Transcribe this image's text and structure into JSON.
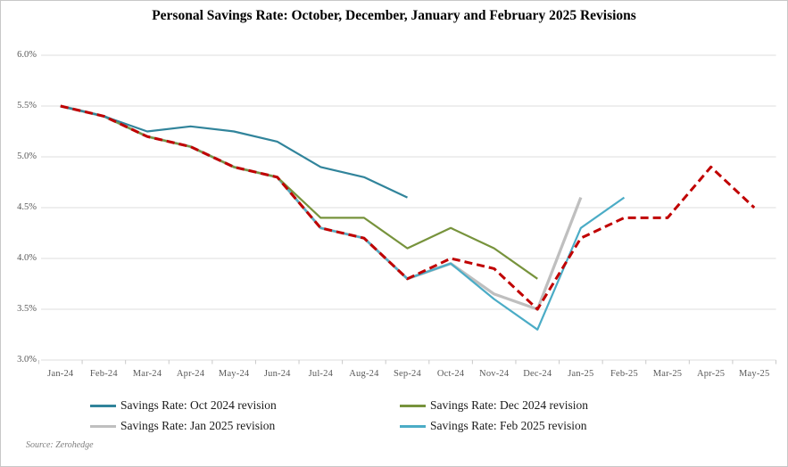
{
  "title": "Personal Savings Rate: October, December, January and February 2025 Revisions",
  "source": "Source: Zerohedge",
  "colors": {
    "background": "#ffffff",
    "frame_border": "#c8c8c8",
    "gridline": "#dcdcdc",
    "axis_tick": "#c9c9c9",
    "axis_text": "#595959",
    "legend_text": "#1a1a1a",
    "title_text": "#000000",
    "oct_revision": "#31849b",
    "dec_revision": "#77933c",
    "jan_revision": "#bfbfbf",
    "feb_revision": "#4bacc6",
    "red_dashed": "#c00000"
  },
  "legend": [
    {
      "label": "Savings Rate: Oct 2024 revision",
      "color": "#31849b"
    },
    {
      "label": "Savings Rate: Dec 2024 revision",
      "color": "#77933c"
    },
    {
      "label": "Savings Rate: Jan 2025 revision",
      "color": "#bfbfbf"
    },
    {
      "label": "Savings Rate: Feb 2025 revision",
      "color": "#4bacc6"
    }
  ],
  "chart_data": {
    "type": "line",
    "title": "Personal Savings Rate: October, December, January and February 2025 Revisions",
    "xlabel": "",
    "ylabel": "",
    "ylim": [
      3.0,
      6.0
    ],
    "grid": "horizontal",
    "legend_position": "bottom",
    "categories": [
      "Jan-24",
      "Feb-24",
      "Mar-24",
      "Apr-24",
      "May-24",
      "Jun-24",
      "Jul-24",
      "Aug-24",
      "Sep-24",
      "Oct-24",
      "Nov-24",
      "Dec-24",
      "Jan-25",
      "Feb-25",
      "Mar-25",
      "Apr-25",
      "May-25"
    ],
    "yticks": [
      {
        "label": "6.0%",
        "value": 6.0
      },
      {
        "label": "5.5%",
        "value": 5.5
      },
      {
        "label": "5.0%",
        "value": 5.0
      },
      {
        "label": "4.5%",
        "value": 4.5
      },
      {
        "label": "4.0%",
        "value": 4.0
      },
      {
        "label": "3.5%",
        "value": 3.5
      },
      {
        "label": "3.0%",
        "value": 3.0
      }
    ],
    "series": [
      {
        "name": "Savings Rate: Jan 2025 revision",
        "color": "#bfbfbf",
        "width": 3.25,
        "dashed": false,
        "values": [
          5.5,
          5.4,
          5.2,
          5.1,
          4.9,
          4.8,
          4.3,
          4.2,
          3.8,
          3.95,
          3.65,
          3.5,
          4.6,
          null,
          null,
          null,
          null
        ]
      },
      {
        "name": "Savings Rate: Feb 2025 revision",
        "color": "#4bacc6",
        "width": 2.2,
        "dashed": false,
        "values": [
          5.5,
          5.4,
          5.2,
          5.1,
          4.9,
          4.8,
          4.3,
          4.2,
          3.8,
          3.95,
          3.6,
          3.3,
          4.3,
          4.6,
          null,
          null,
          null
        ]
      },
      {
        "name": "Savings Rate: Dec 2024 revision",
        "color": "#77933c",
        "width": 2.2,
        "dashed": false,
        "values": [
          5.5,
          5.4,
          5.2,
          5.1,
          4.9,
          4.8,
          4.4,
          4.4,
          4.1,
          4.3,
          4.1,
          3.8,
          null,
          null,
          null,
          null,
          null
        ]
      },
      {
        "name": "Savings Rate: Oct 2024 revision",
        "color": "#31849b",
        "width": 2.2,
        "dashed": false,
        "values": [
          5.5,
          5.4,
          5.25,
          5.3,
          5.25,
          5.15,
          4.9,
          4.8,
          4.6,
          null,
          null,
          null,
          null,
          null,
          null,
          null,
          null
        ]
      },
      {
        "name": null,
        "color": "#c00000",
        "width": 3,
        "dashed": true,
        "values": [
          5.5,
          5.4,
          5.2,
          5.1,
          4.9,
          4.8,
          4.3,
          4.2,
          3.8,
          4.0,
          3.9,
          3.5,
          4.2,
          4.4,
          4.4,
          4.9,
          4.5
        ]
      }
    ]
  }
}
